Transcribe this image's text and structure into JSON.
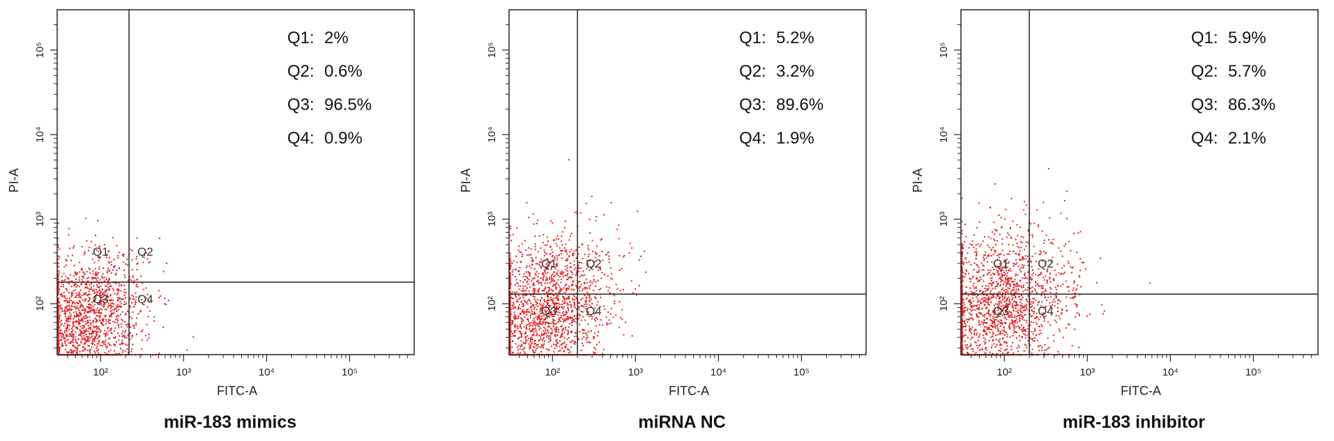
{
  "chart_data": [
    {
      "type": "scatter",
      "title": "miR-183 mimics",
      "xlabel": "FITC-A",
      "ylabel": "PI-A",
      "xscale": "log",
      "yscale": "log",
      "xlim": [
        30,
        600000
      ],
      "ylim": [
        25,
        300000
      ],
      "x_ticks": [
        100,
        1000,
        10000,
        100000
      ],
      "y_ticks": [
        100,
        1000,
        10000,
        100000
      ],
      "tick_labels": [
        "10²",
        "10³",
        "10⁴",
        "10⁵"
      ],
      "gate": {
        "x": 220,
        "y": 180
      },
      "quadrant_labels": [
        "Q1",
        "Q2",
        "Q3",
        "Q4"
      ],
      "quadrant_values": [
        {
          "label": "Q1:",
          "value": "2%"
        },
        {
          "label": "Q2:",
          "value": "0.6%"
        },
        {
          "label": "Q3:",
          "value": "96.5%"
        },
        {
          "label": "Q4:",
          "value": "0.9%"
        }
      ],
      "point_color": "#e02020",
      "population": {
        "center_x": 65,
        "center_y": 65,
        "spread_x": 0.36,
        "spread_y": 0.38,
        "n_points": 1700
      }
    },
    {
      "type": "scatter",
      "title": "miRNA NC",
      "xlabel": "FITC-A",
      "ylabel": "PI-A",
      "xscale": "log",
      "yscale": "log",
      "xlim": [
        30,
        600000
      ],
      "ylim": [
        25,
        300000
      ],
      "x_ticks": [
        100,
        1000,
        10000,
        100000
      ],
      "y_ticks": [
        100,
        1000,
        10000,
        100000
      ],
      "tick_labels": [
        "10²",
        "10³",
        "10⁴",
        "10⁵"
      ],
      "gate": {
        "x": 200,
        "y": 130
      },
      "quadrant_labels": [
        "Q1",
        "Q2",
        "Q3",
        "Q4"
      ],
      "quadrant_values": [
        {
          "label": "Q1:",
          "value": "5.2%"
        },
        {
          "label": "Q2:",
          "value": "3.2%"
        },
        {
          "label": "Q3:",
          "value": "89.6%"
        },
        {
          "label": "Q4:",
          "value": "1.9%"
        }
      ],
      "point_color": "#e02020",
      "population": {
        "center_x": 75,
        "center_y": 85,
        "spread_x": 0.42,
        "spread_y": 0.42,
        "n_points": 1900
      }
    },
    {
      "type": "scatter",
      "title": "miR-183 inhibitor",
      "xlabel": "FITC-A",
      "ylabel": "PI-A",
      "xscale": "log",
      "yscale": "log",
      "xlim": [
        30,
        600000
      ],
      "ylim": [
        25,
        300000
      ],
      "x_ticks": [
        100,
        1000,
        10000,
        100000
      ],
      "y_ticks": [
        100,
        1000,
        10000,
        100000
      ],
      "tick_labels": [
        "10²",
        "10³",
        "10⁴",
        "10⁵"
      ],
      "gate": {
        "x": 200,
        "y": 130
      },
      "quadrant_labels": [
        "Q1",
        "Q2",
        "Q3",
        "Q4"
      ],
      "quadrant_values": [
        {
          "label": "Q1:",
          "value": "5.9%"
        },
        {
          "label": "Q2:",
          "value": "5.7%"
        },
        {
          "label": "Q3:",
          "value": "86.3%"
        },
        {
          "label": "Q4:",
          "value": "2.1%"
        }
      ],
      "point_color": "#e02020",
      "population": {
        "center_x": 80,
        "center_y": 95,
        "spread_x": 0.45,
        "spread_y": 0.45,
        "n_points": 1900
      }
    }
  ]
}
